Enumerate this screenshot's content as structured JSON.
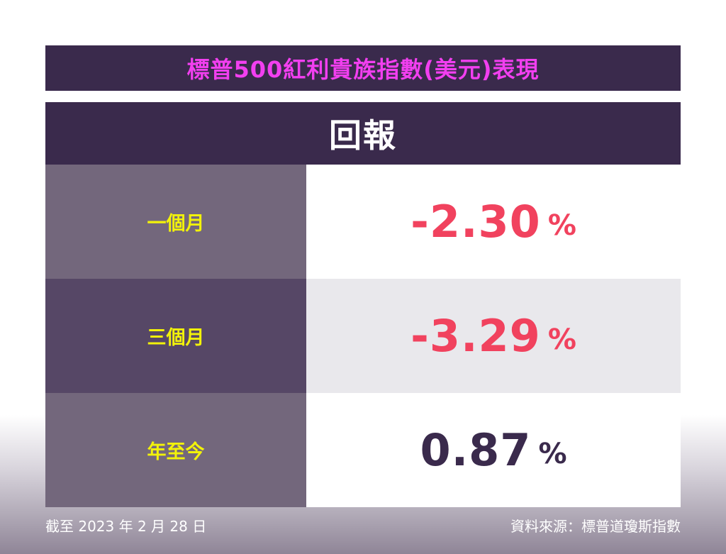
{
  "title": "標普500紅利貴族指數(美元)表現",
  "table": {
    "header": "回報",
    "rows": [
      {
        "label": "一個月",
        "value": "-2.30",
        "unit": "%"
      },
      {
        "label": "三個月",
        "value": "-3.29",
        "unit": "%"
      },
      {
        "label": "年至今",
        "value": "0.87",
        "unit": "%"
      }
    ]
  },
  "footer": {
    "date_note": "截至 2023 年 2 月 28 日",
    "source": "資料來源：標普道瓊斯指數"
  },
  "colors": {
    "title_text": "#f23ff0",
    "header_bg": "#3a2a4c",
    "label_text": "#f2f20a",
    "negative": "#f1425e",
    "positive": "#3a2a4c"
  }
}
